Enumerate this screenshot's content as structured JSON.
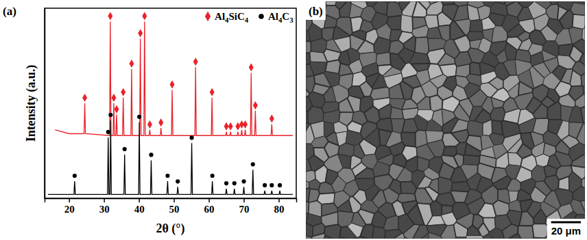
{
  "chart_data": {
    "type": "line",
    "panel_label": "(a)",
    "x_label": "2θ (°)",
    "y_label": "Intensity (a.u.)",
    "xlim": [
      13,
      85
    ],
    "xticks": [
      20,
      30,
      40,
      50,
      60,
      70,
      80
    ],
    "ylim": [
      0,
      100
    ],
    "yticks": [],
    "tick_labels": "x",
    "grid": false,
    "legend": "top-right",
    "series": [
      {
        "name": "Al4SiC4",
        "color": "#e8232a",
        "marker": "diamond",
        "x": [
          16,
          20,
          24.3,
          24.5,
          24.7,
          31.6,
          31.8,
          32.0,
          32.6,
          32.8,
          33.0,
          33.4,
          33.6,
          33.8,
          35.3,
          35.5,
          35.7,
          37.7,
          37.9,
          38.1,
          40.2,
          40.4,
          40.6,
          41.4,
          41.6,
          41.8,
          42.9,
          43.1,
          43.3,
          46.1,
          46.3,
          46.5,
          49.3,
          49.5,
          49.7,
          56.0,
          56.2,
          56.4,
          60.7,
          60.9,
          61.1,
          64.8,
          65.0,
          65.2,
          66.0,
          66.2,
          66.4,
          68.1,
          68.3,
          68.5,
          69.2,
          69.4,
          69.6,
          70.2,
          70.4,
          70.6,
          71.9,
          72.1,
          72.3,
          73.1,
          73.3,
          73.5,
          77.8,
          78.0,
          78.2,
          84
        ],
        "values": [
          36,
          34,
          34,
          50,
          34,
          33,
          93,
          33,
          33,
          50,
          33,
          33,
          44,
          33,
          33,
          53,
          33,
          33,
          68,
          33,
          33,
          84,
          33,
          33,
          93,
          33,
          33,
          36,
          33,
          33,
          37,
          33,
          33,
          57,
          33,
          33,
          69,
          33,
          33,
          53,
          33,
          33,
          35,
          33,
          33,
          35,
          33,
          33,
          35,
          33,
          33,
          36,
          33,
          33,
          36,
          33,
          33,
          66,
          33,
          33,
          46,
          33,
          33,
          39,
          33,
          33
        ]
      },
      {
        "name": "Al4C3",
        "color": "#000000",
        "marker": "circle",
        "x": [
          14,
          21.4,
          21.6,
          21.8,
          31.0,
          31.2,
          31.4,
          31.7,
          31.9,
          32.1,
          35.7,
          35.9,
          36.1,
          39.9,
          40.1,
          40.3,
          43.3,
          43.5,
          43.7,
          48.0,
          48.2,
          48.4,
          50.9,
          51.1,
          51.3,
          54.9,
          55.1,
          55.3,
          60.8,
          61.0,
          61.2,
          64.8,
          65.0,
          65.2,
          67.1,
          67.3,
          67.5,
          69.8,
          70.0,
          70.2,
          72.4,
          72.6,
          72.8,
          75.8,
          76.0,
          76.2,
          77.8,
          78.0,
          78.2,
          80.1,
          80.3,
          80.5,
          84
        ],
        "values": [
          2,
          2,
          9,
          2,
          2,
          32,
          2,
          2,
          41,
          2,
          2,
          23,
          2,
          2,
          40,
          2,
          2,
          20,
          2,
          2,
          9,
          2,
          2,
          6,
          2,
          2,
          29,
          2,
          2,
          9,
          2,
          2,
          5,
          2,
          2,
          5,
          2,
          2,
          6,
          2,
          2,
          15,
          2,
          2,
          4,
          2,
          2,
          4,
          2,
          2,
          4,
          2,
          2
        ]
      }
    ]
  },
  "image_panel": {
    "label": "(b)",
    "scale_bar": "20 μm"
  }
}
